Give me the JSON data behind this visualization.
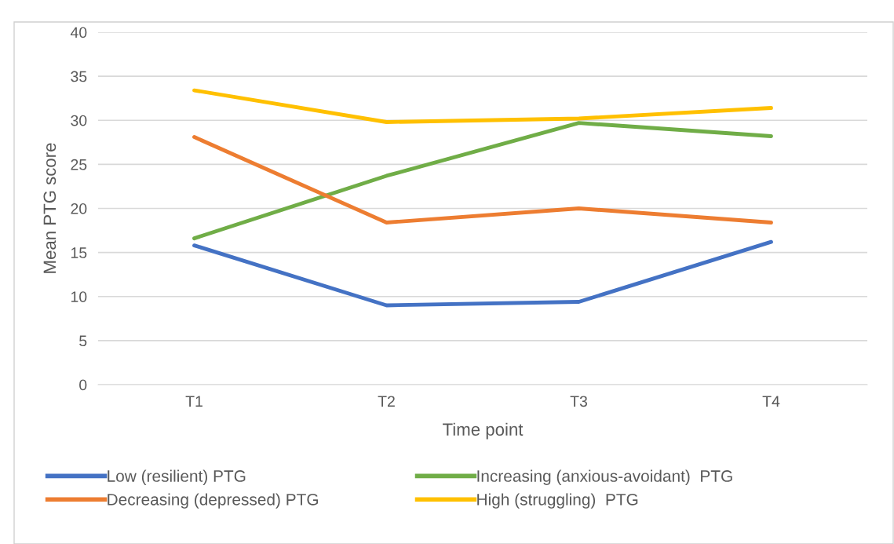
{
  "chart_data": {
    "type": "line",
    "xlabel": "Time point",
    "ylabel": "Mean PTG score",
    "categories": [
      "T1",
      "T2",
      "T3",
      "T4"
    ],
    "series": [
      {
        "name": "Low (resilient) PTG",
        "color": "#4472c4",
        "values": [
          15.8,
          9.0,
          9.4,
          16.2
        ]
      },
      {
        "name": "Increasing (anxious-avoidant)  PTG",
        "color": "#70ad47",
        "values": [
          16.6,
          23.7,
          29.7,
          28.2
        ]
      },
      {
        "name": "Decreasing (depressed) PTG",
        "color": "#ed7d31",
        "values": [
          28.1,
          18.4,
          20.0,
          18.4
        ]
      },
      {
        "name": "High (struggling)  PTG",
        "color": "#ffc000",
        "values": [
          33.4,
          29.8,
          30.2,
          31.4
        ]
      }
    ],
    "ylim": [
      0,
      40
    ],
    "yticks": [
      0,
      5,
      10,
      15,
      20,
      25,
      30,
      35,
      40
    ],
    "grid": "y",
    "legend": "bottom",
    "marker": "none",
    "line_style": "solid"
  }
}
